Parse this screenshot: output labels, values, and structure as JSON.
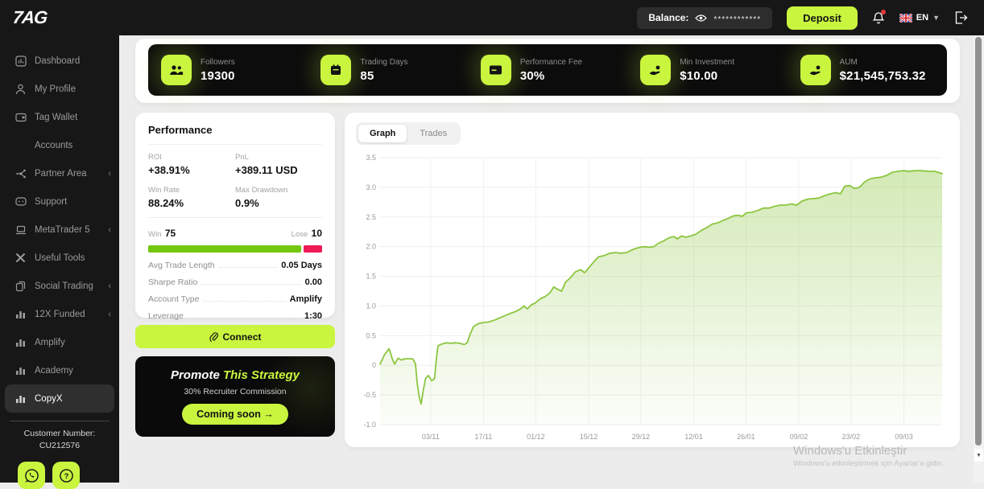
{
  "header": {
    "logo": "7AG",
    "balance_label": "Balance:",
    "balance_masked": "************",
    "deposit_label": "Deposit",
    "language": "EN"
  },
  "sidebar": {
    "items": [
      {
        "label": "Dashboard"
      },
      {
        "label": "My Profile"
      },
      {
        "label": "Tag Wallet"
      },
      {
        "label": "Accounts"
      },
      {
        "label": "Partner Area",
        "chevron": "‹"
      },
      {
        "label": "Support"
      },
      {
        "label": "MetaTrader 5",
        "chevron": "‹"
      },
      {
        "label": "Useful Tools"
      },
      {
        "label": "Social Trading",
        "chevron": "‹"
      },
      {
        "label": "12X Funded",
        "chevron": "‹"
      },
      {
        "label": "Amplify"
      },
      {
        "label": "Academy"
      },
      {
        "label": "CopyX",
        "active": true
      }
    ],
    "customer_number_label": "Customer Number:",
    "customer_number": "CU212576"
  },
  "stats": [
    {
      "label": "Followers",
      "value": "19300",
      "icon": "followers-icon"
    },
    {
      "label": "Trading Days",
      "value": "85",
      "icon": "calendar-icon"
    },
    {
      "label": "Performance Fee",
      "value": "30%",
      "icon": "card-icon"
    },
    {
      "label": "Min Investment",
      "value": "$10.00",
      "icon": "hand-coin-icon"
    },
    {
      "label": "AUM",
      "value": "$21,545,753.32",
      "icon": "hand-coin-icon"
    }
  ],
  "performance": {
    "title": "Performance",
    "metrics": [
      {
        "label": "ROI",
        "value": "+38.91%"
      },
      {
        "label": "PnL",
        "value": "+389.11 USD"
      },
      {
        "label": "Win Rate",
        "value": "88.24%"
      },
      {
        "label": "Max Drawdown",
        "value": "0.9%"
      }
    ],
    "win_label": "Win",
    "win_value": "75",
    "lose_label": "Lose",
    "lose_value": "10",
    "win_pct": 88,
    "rows": [
      {
        "label": "Avg Trade Length",
        "value": "0.05 Days"
      },
      {
        "label": "Sharpe Ratio",
        "value": "0.00"
      },
      {
        "label": "Account Type",
        "value": "Amplify"
      },
      {
        "label": "Leverage",
        "value": "1:30"
      }
    ],
    "connect_label": "Connect"
  },
  "promo": {
    "title_white": "Promote",
    "title_lime": " This Strategy",
    "subtitle": "30% Recruiter Commission",
    "button_label": "Coming soon →"
  },
  "graph_panel": {
    "tabs": [
      {
        "label": "Graph",
        "active": true
      },
      {
        "label": "Trades",
        "active": false
      }
    ]
  },
  "chart_data": {
    "type": "area",
    "title": "",
    "xlabel": "",
    "ylabel": "",
    "ylim": [
      -1.0,
      3.5
    ],
    "yticks": [
      3.5,
      3.0,
      2.5,
      2.0,
      1.5,
      1.0,
      0.5,
      0,
      -0.5,
      -1.0
    ],
    "x_tick_labels": [
      "03/11",
      "17/11",
      "01/12",
      "15/12",
      "29/12",
      "12/01",
      "26/01",
      "09/02",
      "23/02",
      "09/03"
    ],
    "x_tick_pct": [
      9.0,
      18.4,
      27.7,
      37.1,
      46.4,
      55.8,
      65.1,
      74.5,
      83.8,
      93.2
    ],
    "grid": true,
    "legend": "none",
    "line_color": "#8cc63f",
    "points": [
      [
        0,
        0.02
      ],
      [
        0.8,
        0.18
      ],
      [
        1.6,
        0.28
      ],
      [
        2.2,
        0.1
      ],
      [
        2.6,
        0.02
      ],
      [
        3.2,
        0.12
      ],
      [
        3.8,
        0.09
      ],
      [
        4.4,
        0.11
      ],
      [
        5.2,
        0.11
      ],
      [
        5.8,
        0.11
      ],
      [
        6.3,
        0.02
      ],
      [
        6.6,
        -0.3
      ],
      [
        7.0,
        -0.55
      ],
      [
        7.3,
        -0.65
      ],
      [
        7.7,
        -0.42
      ],
      [
        8.1,
        -0.22
      ],
      [
        8.6,
        -0.17
      ],
      [
        9.2,
        -0.26
      ],
      [
        9.7,
        -0.22
      ],
      [
        10.0,
        0.1
      ],
      [
        10.3,
        0.33
      ],
      [
        11.0,
        0.36
      ],
      [
        11.8,
        0.38
      ],
      [
        12.6,
        0.37
      ],
      [
        13.4,
        0.38
      ],
      [
        14.2,
        0.37
      ],
      [
        15.0,
        0.35
      ],
      [
        15.5,
        0.38
      ],
      [
        16.0,
        0.52
      ],
      [
        16.6,
        0.65
      ],
      [
        17.4,
        0.7
      ],
      [
        18.3,
        0.72
      ],
      [
        19.3,
        0.73
      ],
      [
        20.3,
        0.76
      ],
      [
        21.3,
        0.8
      ],
      [
        22.3,
        0.84
      ],
      [
        23.3,
        0.88
      ],
      [
        24.2,
        0.91
      ],
      [
        25.0,
        0.95
      ],
      [
        25.6,
        1.0
      ],
      [
        26.2,
        0.95
      ],
      [
        26.9,
        1.02
      ],
      [
        27.6,
        1.05
      ],
      [
        28.5,
        1.12
      ],
      [
        29.4,
        1.16
      ],
      [
        30.2,
        1.22
      ],
      [
        30.9,
        1.32
      ],
      [
        31.6,
        1.28
      ],
      [
        32.3,
        1.25
      ],
      [
        33.0,
        1.4
      ],
      [
        33.9,
        1.48
      ],
      [
        34.8,
        1.58
      ],
      [
        35.7,
        1.61
      ],
      [
        36.4,
        1.56
      ],
      [
        37.1,
        1.64
      ],
      [
        38.0,
        1.74
      ],
      [
        38.9,
        1.83
      ],
      [
        39.9,
        1.85
      ],
      [
        40.9,
        1.89
      ],
      [
        41.9,
        1.9
      ],
      [
        42.9,
        1.89
      ],
      [
        43.9,
        1.9
      ],
      [
        44.7,
        1.94
      ],
      [
        45.5,
        1.97
      ],
      [
        46.3,
        1.99
      ],
      [
        47.1,
        2.0
      ],
      [
        47.9,
        1.99
      ],
      [
        48.7,
        2.0
      ],
      [
        49.6,
        2.06
      ],
      [
        50.5,
        2.1
      ],
      [
        51.4,
        2.15
      ],
      [
        52.3,
        2.17
      ],
      [
        52.9,
        2.13
      ],
      [
        53.6,
        2.18
      ],
      [
        54.4,
        2.16
      ],
      [
        55.3,
        2.18
      ],
      [
        56.2,
        2.21
      ],
      [
        57.1,
        2.27
      ],
      [
        58.1,
        2.32
      ],
      [
        59.1,
        2.38
      ],
      [
        60.0,
        2.4
      ],
      [
        61.0,
        2.44
      ],
      [
        62.0,
        2.48
      ],
      [
        62.9,
        2.52
      ],
      [
        63.7,
        2.53
      ],
      [
        64.4,
        2.51
      ],
      [
        65.2,
        2.57
      ],
      [
        66.2,
        2.58
      ],
      [
        67.2,
        2.61
      ],
      [
        68.2,
        2.65
      ],
      [
        69.2,
        2.65
      ],
      [
        70.2,
        2.68
      ],
      [
        71.2,
        2.7
      ],
      [
        72.2,
        2.7
      ],
      [
        73.2,
        2.72
      ],
      [
        74.1,
        2.7
      ],
      [
        75.1,
        2.77
      ],
      [
        76.1,
        2.8
      ],
      [
        77.1,
        2.81
      ],
      [
        78.1,
        2.82
      ],
      [
        79.1,
        2.86
      ],
      [
        80.1,
        2.89
      ],
      [
        81.1,
        2.91
      ],
      [
        81.9,
        2.89
      ],
      [
        82.7,
        3.02
      ],
      [
        83.6,
        3.03
      ],
      [
        84.4,
        2.98
      ],
      [
        85.3,
        3.0
      ],
      [
        86.2,
        3.09
      ],
      [
        87.1,
        3.14
      ],
      [
        88.1,
        3.16
      ],
      [
        89.1,
        3.17
      ],
      [
        90.1,
        3.2
      ],
      [
        91.1,
        3.25
      ],
      [
        92.1,
        3.27
      ],
      [
        93.1,
        3.28
      ],
      [
        94.1,
        3.27
      ],
      [
        95.1,
        3.28
      ],
      [
        96.3,
        3.28
      ],
      [
        97.5,
        3.27
      ],
      [
        98.7,
        3.27
      ],
      [
        100,
        3.23
      ]
    ]
  },
  "watermark": {
    "line1": "Windows'u Etkinleştir",
    "line2": "Windows'u etkinleştirmek için Ayarlar'a gidin."
  },
  "colors": {
    "lime": "#c9f53f",
    "chart_line": "#8cc63f",
    "win_green": "#74c60f",
    "lose_red": "#ee1a55",
    "dark": "#171717"
  }
}
